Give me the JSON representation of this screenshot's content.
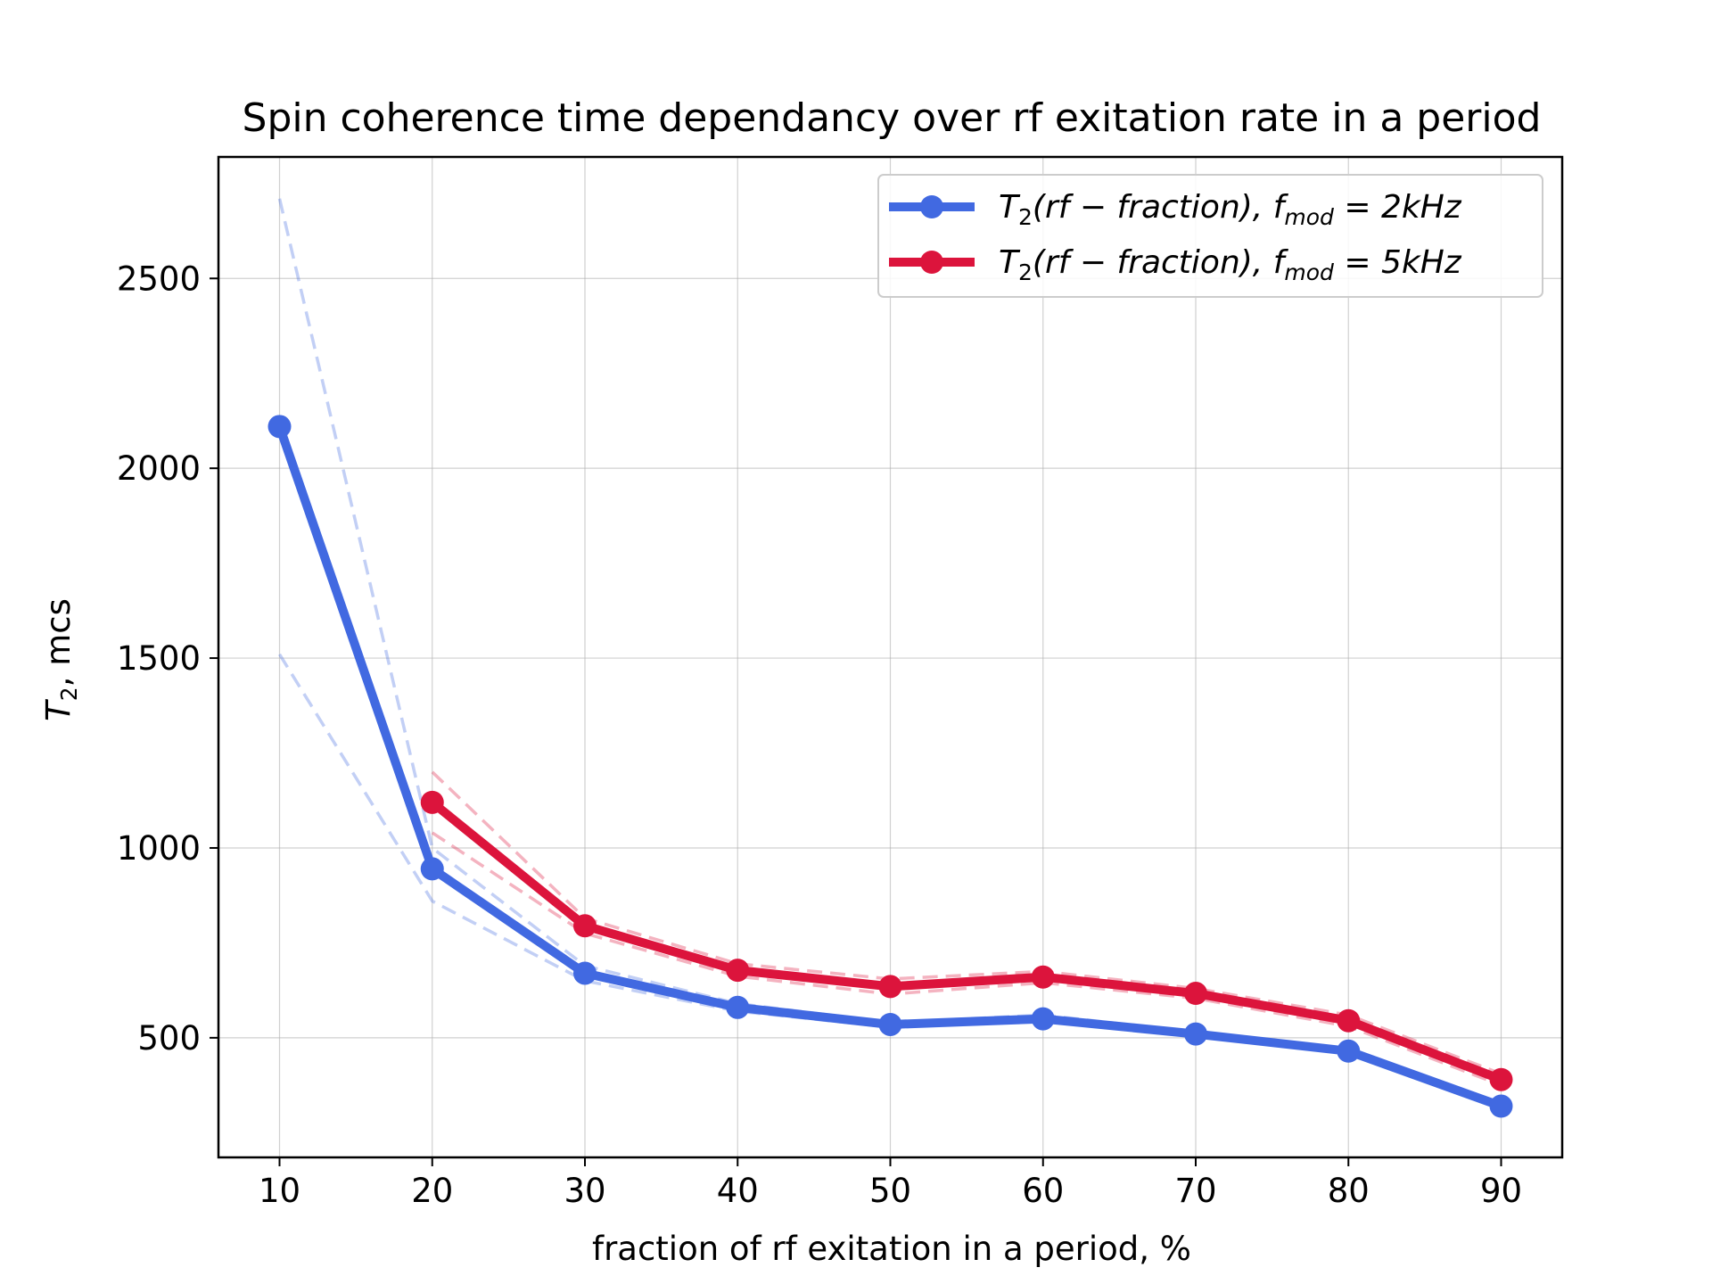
{
  "chart_data": {
    "type": "line",
    "title": "Spin coherence time dependancy over rf exitation rate in a period",
    "xlabel": "fraction of rf exitation in a period, %",
    "ylabel": {
      "symbol": "T",
      "subscript": "2",
      "suffix": ", mcs"
    },
    "xlim": [
      6,
      94
    ],
    "ylim": [
      185,
      2820
    ],
    "xticks": [
      "10",
      "20",
      "30",
      "40",
      "50",
      "60",
      "70",
      "80",
      "90"
    ],
    "yticks": [
      "500",
      "1000",
      "1500",
      "2000",
      "2500"
    ],
    "grid": true,
    "legend_position": "top-right",
    "series": [
      {
        "name": "T2(rf − fraction), fmod = 2kHz",
        "legend": {
          "main": "T",
          "sub1": "2",
          "mid": "(rf − fraction), f",
          "sub2": "mod",
          "tail": " = 2kHz"
        },
        "color": "#4169e1",
        "x": [
          10,
          20,
          30,
          40,
          50,
          60,
          70,
          80,
          90
        ],
        "values": [
          2110,
          945,
          670,
          580,
          535,
          550,
          510,
          465,
          320
        ],
        "band_upper": [
          2710,
          1000,
          690,
          590,
          540,
          560,
          515,
          470,
          325
        ],
        "band_lower": [
          1510,
          860,
          650,
          570,
          528,
          545,
          505,
          460,
          315
        ]
      },
      {
        "name": "T2(rf − fraction), fmod = 5kHz",
        "legend": {
          "main": "T",
          "sub1": "2",
          "mid": "(rf − fraction), f",
          "sub2": "mod",
          "tail": " = 5kHz"
        },
        "color": "#dc143c",
        "x": [
          20,
          30,
          40,
          50,
          60,
          70,
          80,
          90
        ],
        "values": [
          1120,
          795,
          678,
          635,
          660,
          617,
          545,
          390
        ],
        "band_upper": [
          1200,
          815,
          695,
          655,
          675,
          630,
          560,
          405
        ],
        "band_lower": [
          1040,
          775,
          662,
          615,
          645,
          604,
          530,
          375
        ]
      }
    ]
  }
}
